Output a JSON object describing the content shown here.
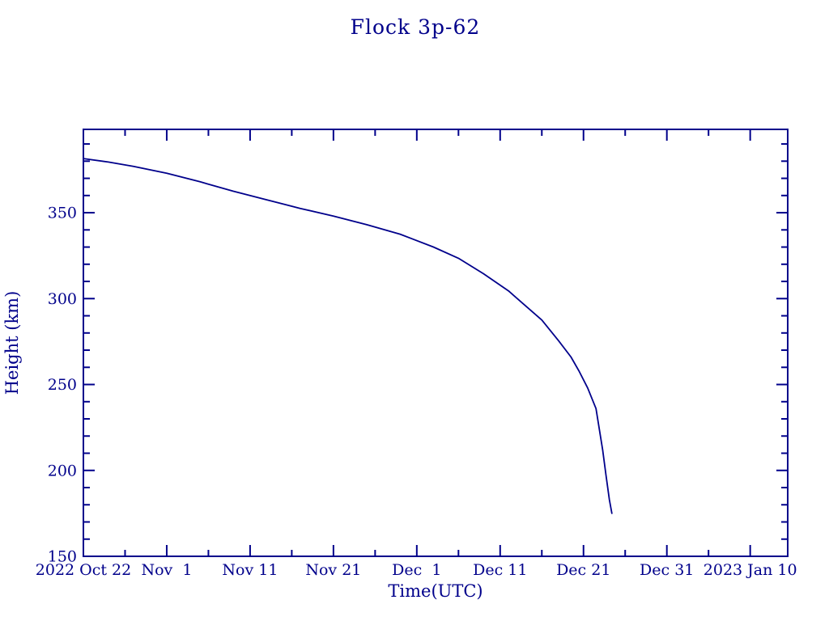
{
  "page": {
    "background": "#ffffff",
    "accent": "#00008B"
  },
  "chart_data": {
    "type": "line",
    "title": "Flock 3p-62",
    "xlabel": "Time(UTC)",
    "ylabel": "Height (km)",
    "grid": false,
    "legend": "none",
    "line_color": "#00008B",
    "x_axis": {
      "epoch_label": "days since 2022 Oct 22",
      "range_days": [
        0,
        84.5
      ],
      "major_tick_days": [
        0,
        10,
        20,
        30,
        40,
        50,
        60,
        70,
        80
      ],
      "major_tick_labels": [
        "2022 Oct 22",
        "Nov  1",
        "Nov 11",
        "Nov 21",
        "Dec  1",
        "Dec 11",
        "Dec 21",
        "Dec 31",
        "2023 Jan 10"
      ],
      "minor_tick_days": [
        5,
        15,
        25,
        35,
        45,
        55,
        65,
        75
      ]
    },
    "y_axis": {
      "range": [
        150,
        398.5
      ],
      "major_ticks": [
        150,
        200,
        250,
        300,
        350
      ],
      "major_tick_labels": [
        "150",
        "200",
        "250",
        "300",
        "350"
      ],
      "minor_tick_step_km": 10
    },
    "series": [
      {
        "name": "Flock 3p-62 height",
        "color": "#00008B",
        "points_day_km": [
          [
            0,
            381.5
          ],
          [
            3,
            379.5
          ],
          [
            6,
            377
          ],
          [
            10,
            373
          ],
          [
            14,
            368
          ],
          [
            18,
            362.5
          ],
          [
            22,
            357.5
          ],
          [
            26,
            352.5
          ],
          [
            30,
            348
          ],
          [
            34,
            343
          ],
          [
            38,
            337.5
          ],
          [
            42,
            330
          ],
          [
            45,
            323.5
          ],
          [
            48,
            314.5
          ],
          [
            51,
            304.5
          ],
          [
            53,
            296
          ],
          [
            55,
            287.5
          ],
          [
            57,
            275.5
          ],
          [
            58.5,
            266
          ],
          [
            59.5,
            257.5
          ],
          [
            60.5,
            248
          ],
          [
            61.5,
            236
          ],
          [
            62.3,
            212
          ],
          [
            62.7,
            197
          ],
          [
            63.1,
            183
          ],
          [
            63.4,
            175
          ]
        ]
      }
    ]
  }
}
